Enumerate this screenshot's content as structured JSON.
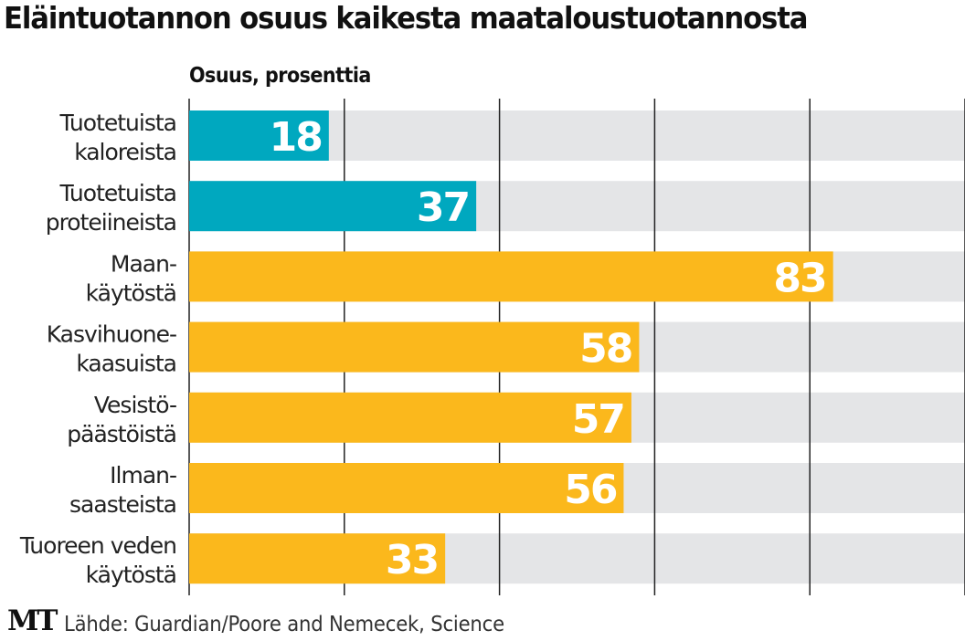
{
  "chart_data": {
    "type": "bar",
    "orientation": "horizontal",
    "title": "Eläintuotannon osuus kaikesta maataloustuotannosta",
    "subtitle": "Osuus, prosenttia",
    "categories": [
      [
        "Tuotetuista",
        "kaloreista"
      ],
      [
        "Tuotetuista",
        "proteiineista"
      ],
      [
        "Maan-",
        "käytöstä"
      ],
      [
        "Kasvihuone-",
        "kaasuista"
      ],
      [
        "Vesistö-",
        "päästöistä"
      ],
      [
        "Ilman-",
        "saasteista"
      ],
      [
        "Tuoreen veden",
        "käytöstä"
      ]
    ],
    "values": [
      18,
      37,
      83,
      58,
      57,
      56,
      33
    ],
    "bar_colors": [
      "#00a8bf",
      "#00a8bf",
      "#fbb81c",
      "#fbb81c",
      "#fbb81c",
      "#fbb81c",
      "#fbb81c"
    ],
    "background_color": "#e4e5e7",
    "xlim": [
      0,
      100
    ],
    "gridlines": [
      0,
      20,
      40,
      60,
      80,
      100
    ],
    "grid": true
  },
  "logo": "MT",
  "source": "Lähde: Guardian/Poore and Nemecek, Science"
}
